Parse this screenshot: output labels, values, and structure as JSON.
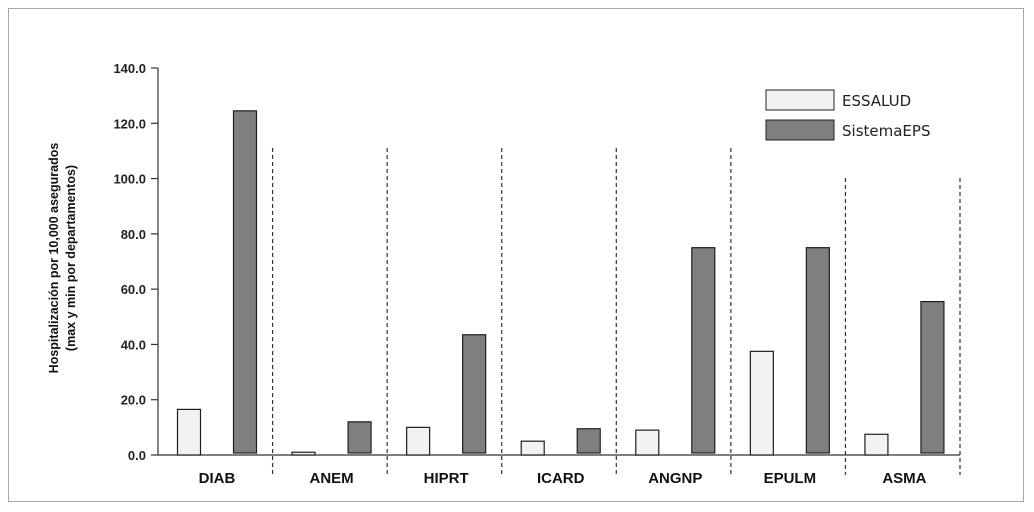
{
  "chart_data": {
    "type": "bar",
    "categories": [
      "DIAB",
      "ANEM",
      "HIPRT",
      "ICARD",
      "ANGNP",
      "EPULM",
      "ASMA"
    ],
    "series": [
      {
        "name": "ESSALUD",
        "values": [
          16.5,
          1.0,
          10.0,
          5.0,
          9.0,
          37.5,
          7.5
        ],
        "color": "#f2f2f2"
      },
      {
        "name": "SistemaEPS",
        "values": [
          124.5,
          12.0,
          43.5,
          9.5,
          75.0,
          75.0,
          55.5
        ],
        "color": "#7f7f7f"
      }
    ],
    "ylabel_line1": "Hospitalización  por 10,000 asegurados",
    "ylabel_line2": "(max y min por departamentos)",
    "ylim": [
      0,
      140
    ],
    "yticks": [
      "0.0",
      "20.0",
      "40.0",
      "60.0",
      "80.0",
      "100.0",
      "120.0",
      "140.0"
    ],
    "ytick_values": [
      0,
      20,
      40,
      60,
      80,
      100,
      120,
      140
    ],
    "legend": {
      "position": "top-right"
    },
    "grid": false
  }
}
